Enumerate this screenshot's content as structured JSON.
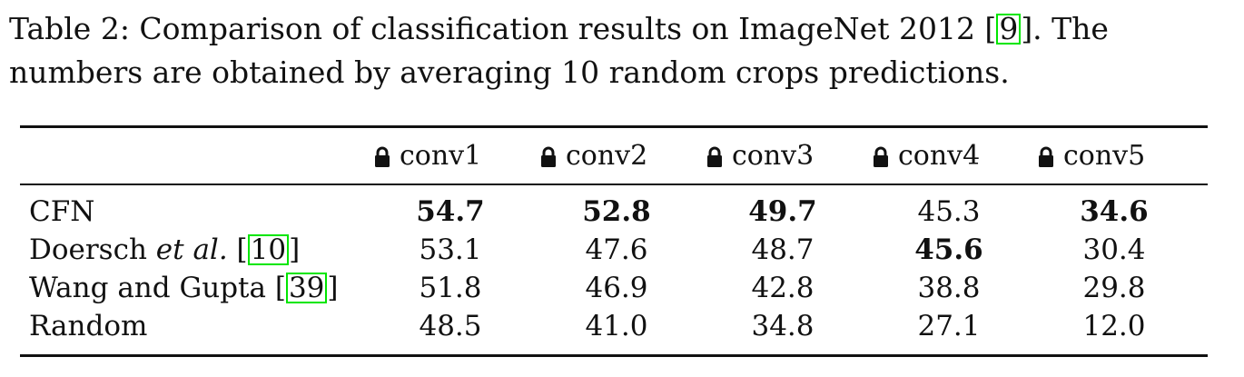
{
  "caption": {
    "prefix": "Table 2: Comparison of classification results on ImageNet 2012 [",
    "cite": "9",
    "suffix": "]. The numbers are obtained by averaging 10 random crops predictions."
  },
  "table": {
    "columns": [
      "conv1",
      "conv2",
      "conv3",
      "conv4",
      "conv5"
    ],
    "column_icon": "lock-icon",
    "rows": [
      {
        "method": "CFN",
        "cite": "",
        "values": [
          "54.7",
          "52.8",
          "49.7",
          "45.3",
          "34.6"
        ],
        "bold": [
          true,
          true,
          true,
          false,
          true
        ]
      },
      {
        "method": "Doersch",
        "method_italic": "et al.",
        "cite": "10",
        "values": [
          "53.1",
          "47.6",
          "48.7",
          "45.6",
          "30.4"
        ],
        "bold": [
          false,
          false,
          false,
          true,
          false
        ]
      },
      {
        "method": "Wang and Gupta",
        "cite": "39",
        "values": [
          "51.8",
          "46.9",
          "42.8",
          "38.8",
          "29.8"
        ],
        "bold": [
          false,
          false,
          false,
          false,
          false
        ]
      },
      {
        "method": "Random",
        "cite": "",
        "values": [
          "48.5",
          "41.0",
          "34.8",
          "27.1",
          "12.0"
        ],
        "bold": [
          false,
          false,
          false,
          false,
          false
        ]
      }
    ]
  }
}
